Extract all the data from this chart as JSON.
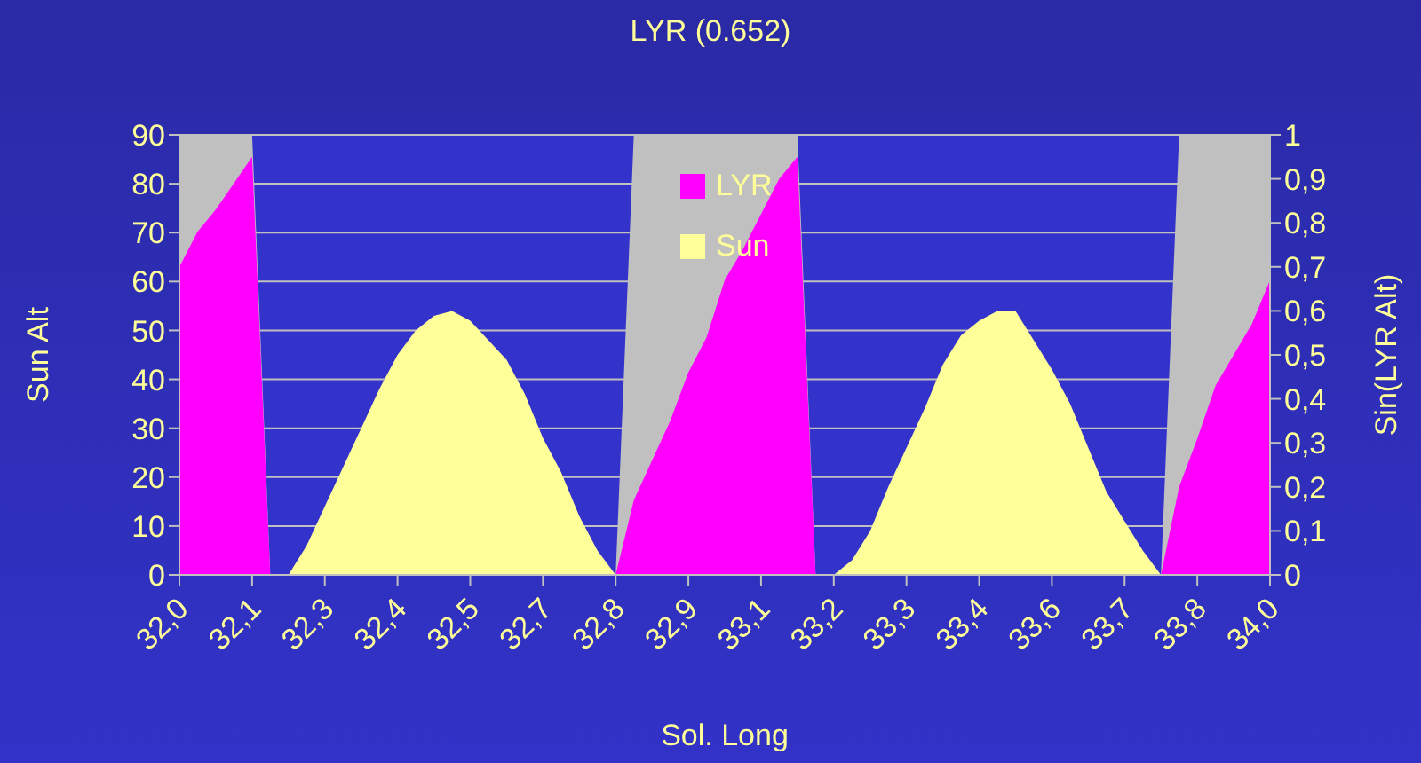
{
  "chart_data": {
    "type": "area",
    "title": "LYR (0.652)",
    "xlabel": "Sol. Long",
    "ylabel": "Sun Alt",
    "y2label": "Sin(LYR Alt)",
    "categories": [
      "32,0",
      null,
      null,
      null,
      "32,1",
      null,
      null,
      null,
      "32,3",
      null,
      null,
      null,
      "32,4",
      null,
      null,
      null,
      "32,5",
      null,
      null,
      null,
      "32,7",
      null,
      null,
      null,
      "32,8",
      null,
      null,
      null,
      "32,9",
      null,
      null,
      null,
      "33,1",
      null,
      null,
      null,
      "33,2",
      null,
      null,
      null,
      "33,3",
      null,
      null,
      null,
      "33,4",
      null,
      null,
      null,
      "33,6",
      null,
      null,
      null,
      "33,7",
      null,
      null,
      null,
      "33,8",
      null,
      null,
      null,
      "34,0"
    ],
    "series": [
      {
        "color": "#c0c0c0",
        "axis": "y2",
        "values": [
          1,
          1,
          1,
          1,
          1,
          0,
          0,
          0,
          0,
          0,
          0,
          0,
          0,
          0,
          0,
          0,
          0,
          0,
          0,
          0,
          0,
          0,
          0,
          0,
          0,
          1,
          1,
          1,
          1,
          1,
          1,
          1,
          1,
          1,
          1,
          0,
          0,
          0,
          0,
          0,
          0,
          0,
          0,
          0,
          0,
          0,
          0,
          0,
          0,
          0,
          0,
          0,
          0,
          0,
          0,
          1,
          1,
          1,
          1,
          1,
          1
        ]
      },
      {
        "name": "LYR",
        "color": "#ff00ff",
        "axis": "y2",
        "values": [
          0.7,
          0.78,
          0.83,
          0.89,
          0.95,
          0,
          0,
          0,
          0,
          0,
          0,
          0,
          0,
          0,
          0,
          0,
          0,
          0,
          0,
          0,
          0,
          0,
          0,
          0,
          0,
          0.17,
          0.26,
          0.35,
          0.46,
          0.54,
          0.67,
          0.74,
          0.82,
          0.9,
          0.95,
          0,
          0,
          0,
          0,
          0,
          0,
          0,
          0,
          0,
          0,
          0,
          0,
          0,
          0,
          0,
          0,
          0,
          0,
          0,
          0,
          0.2,
          0.31,
          0.43,
          0.5,
          0.57,
          0.67
        ]
      },
      {
        "name": "Sun",
        "color": "#ffff99",
        "values": [
          0,
          0,
          0,
          0,
          0,
          0,
          0,
          6,
          14,
          22,
          30,
          38,
          45,
          50,
          53,
          54,
          52,
          48,
          44,
          37,
          28,
          21,
          12,
          5,
          0,
          0,
          0,
          0,
          0,
          0,
          0,
          0,
          0,
          0,
          0,
          0,
          0,
          3,
          9,
          18,
          26,
          34,
          43,
          49,
          52,
          54,
          54,
          48,
          42,
          35,
          26,
          17,
          11,
          5,
          0,
          0,
          0,
          0,
          0,
          0,
          0
        ]
      }
    ],
    "ylim": [
      0,
      90
    ],
    "yticks": [
      0,
      10,
      20,
      30,
      40,
      50,
      60,
      70,
      80,
      90
    ],
    "y2lim": [
      0,
      1
    ],
    "y2ticks": [
      0,
      {
        "value": 0.1,
        "label": "0,1"
      },
      {
        "value": 0.2,
        "label": "0,2"
      },
      {
        "value": 0.3,
        "label": "0,3"
      },
      {
        "value": 0.4,
        "label": "0,4"
      },
      {
        "value": 0.5,
        "label": "0,5"
      },
      {
        "value": 0.6,
        "label": "0,6"
      },
      {
        "value": 0.7,
        "label": "0,7"
      },
      {
        "value": 0.8,
        "label": "0,8"
      },
      {
        "value": 0.9,
        "label": "0,9"
      },
      1
    ],
    "grid": "y",
    "legend": "top"
  }
}
